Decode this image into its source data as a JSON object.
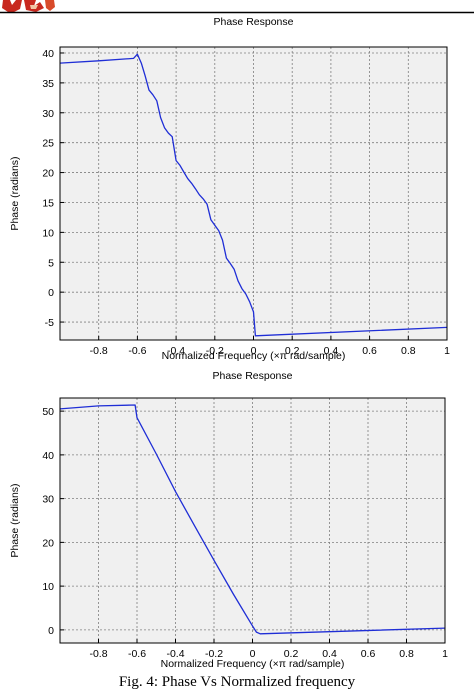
{
  "logo": {
    "name": "red-logo-fragment",
    "color": "#c8281e"
  },
  "colors": {
    "plot_bg": "#f0f0f0",
    "line": "#1f2ed6",
    "grid": "#7f7f7f",
    "axis": "#000000"
  },
  "caption": "Fig. 4: Phase Vs Normalized frequency",
  "chart_data": [
    {
      "type": "line",
      "title": "Phase Response",
      "xlabel": "Normalized Frequency (×π rad/sample)",
      "ylabel": "Phase (radians)",
      "xlim": [
        -1,
        1
      ],
      "ylim": [
        -8,
        41
      ],
      "xticks": [
        -0.8,
        -0.6,
        -0.4,
        -0.2,
        0,
        0.2,
        0.4,
        0.6,
        0.8,
        1
      ],
      "xtick_labels": [
        "-0.8",
        "-0.6",
        "-0.4",
        "-0.2",
        "0",
        "0.2",
        "0.4",
        "0.6",
        "0.8",
        "1"
      ],
      "yticks": [
        40,
        35,
        30,
        25,
        20,
        15,
        10,
        5,
        0,
        -5
      ],
      "ytick_labels": [
        "40",
        "35",
        "30",
        "25",
        "20",
        "15",
        "10",
        "5",
        "0",
        "-5"
      ],
      "grid": true,
      "series": [
        {
          "x": [
            -1,
            -0.8,
            -0.62,
            -0.6,
            -0.58,
            -0.56,
            -0.54,
            -0.52,
            -0.5,
            -0.48,
            -0.46,
            -0.44,
            -0.42,
            -0.4,
            -0.38,
            -0.36,
            -0.34,
            -0.32,
            -0.3,
            -0.28,
            -0.26,
            -0.24,
            -0.22,
            -0.2,
            -0.18,
            -0.16,
            -0.14,
            -0.12,
            -0.1,
            -0.08,
            -0.06,
            -0.04,
            -0.02,
            0,
            0.01,
            1
          ],
          "y": [
            38.3,
            38.7,
            39.1,
            39.8,
            38.3,
            36.2,
            33.8,
            33.0,
            32.0,
            29.2,
            27.5,
            26.6,
            26.0,
            22.0,
            21.2,
            20.1,
            19.0,
            18.2,
            17.3,
            16.3,
            15.6,
            14.7,
            12.1,
            11.2,
            10.3,
            8.7,
            5.7,
            4.8,
            3.8,
            1.9,
            0.6,
            -0.3,
            -1.6,
            -3.3,
            -7.3,
            -5.9
          ]
        }
      ]
    },
    {
      "type": "line",
      "title": "Phase Response",
      "xlabel": "Normalized Frequency (×π rad/sample)",
      "ylabel": "Phase (radians)",
      "xlim": [
        -1,
        1
      ],
      "ylim": [
        -3,
        53
      ],
      "xticks": [
        -0.8,
        -0.6,
        -0.4,
        -0.2,
        0,
        0.2,
        0.4,
        0.6,
        0.8,
        1
      ],
      "xtick_labels": [
        "-0.8",
        "-0.6",
        "-0.4",
        "-0.2",
        "0",
        "0.2",
        "0.4",
        "0.6",
        "0.8",
        "1"
      ],
      "yticks": [
        50,
        40,
        30,
        20,
        10,
        0
      ],
      "ytick_labels": [
        "50",
        "40",
        "30",
        "20",
        "10",
        "0"
      ],
      "grid": true,
      "series": [
        {
          "x": [
            -1,
            -0.8,
            -0.61,
            -0.6,
            -0.5,
            -0.4,
            -0.3,
            -0.2,
            -0.1,
            0,
            0.02,
            0.04,
            1
          ],
          "y": [
            50.5,
            51.2,
            51.4,
            48.5,
            40.2,
            31.6,
            23.7,
            15.9,
            8.2,
            0.9,
            -0.5,
            -0.9,
            0.4
          ]
        }
      ]
    }
  ]
}
